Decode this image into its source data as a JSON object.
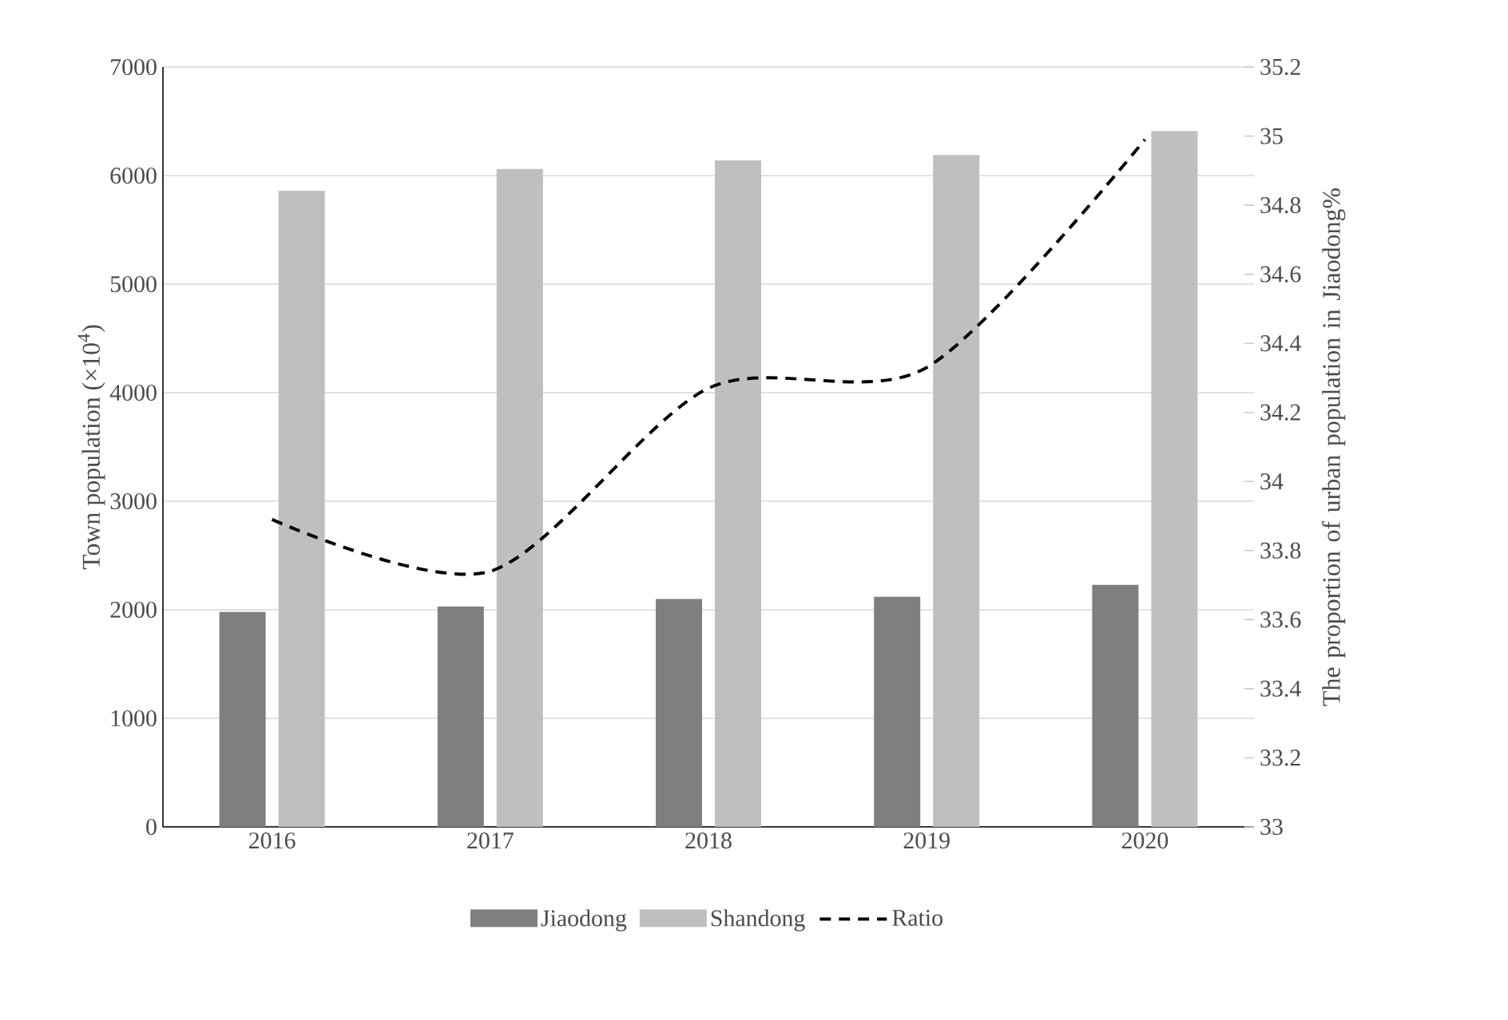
{
  "chart_data": {
    "type": "bar",
    "ylabel": "Town population (×10$^{4}$)",
    "y2label": "The proportion of urban population in Jiaodong%",
    "categories": [
      "2016",
      "2017",
      "2018",
      "2019",
      "2020"
    ],
    "series": [
      {
        "name": "Jiaodong",
        "color": "#7f7f7f",
        "values": [
          1980,
          2030,
          2100,
          2120,
          2230
        ]
      },
      {
        "name": "Shandong",
        "color": "#bfbfbf",
        "values": [
          5860,
          6060,
          6140,
          6190,
          6410
        ]
      },
      {
        "name": "Ratio",
        "type": "line",
        "axis": "y2",
        "color": "#000000",
        "line_style": "dashed",
        "marker": "none",
        "values": [
          33.89,
          33.74,
          34.27,
          34.33,
          34.99
        ]
      }
    ],
    "ylim": [
      0,
      7000
    ],
    "yticks": [
      0,
      1000,
      2000,
      3000,
      4000,
      5000,
      6000,
      7000
    ],
    "y2lim": [
      33,
      35.2
    ],
    "y2ticks": [
      33,
      33.2,
      33.4,
      33.6,
      33.8,
      34,
      34.2,
      34.4,
      34.6,
      34.8,
      35,
      35.2
    ],
    "grid": "y",
    "legend": "bottom"
  }
}
